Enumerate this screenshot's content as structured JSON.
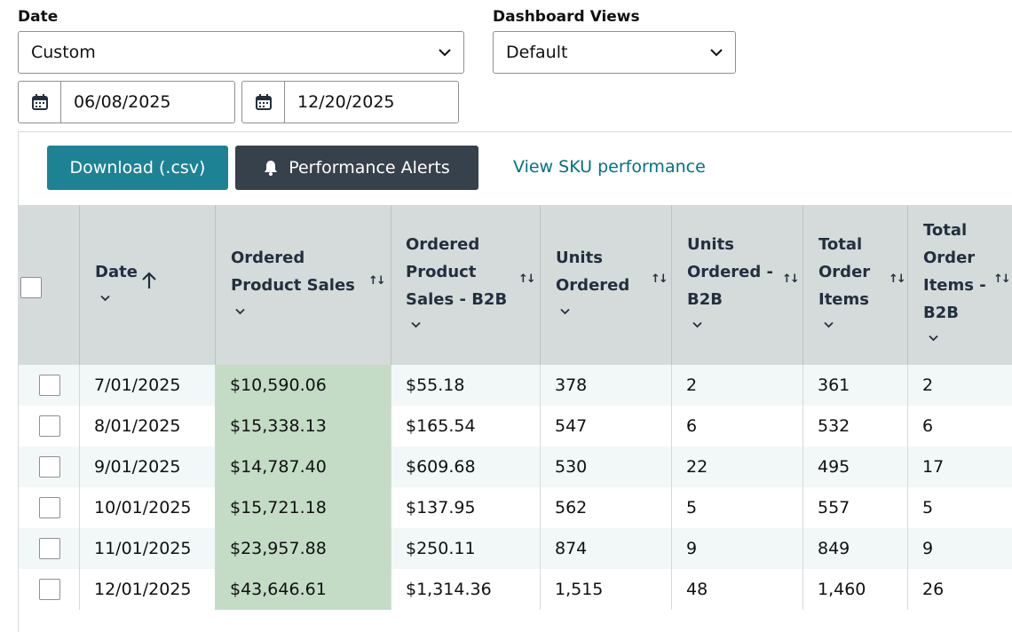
{
  "filters": {
    "date_label": "Date",
    "date_value": "Custom",
    "views_label": "Dashboard Views",
    "views_value": "Default",
    "start_date": "06/08/2025",
    "end_date": "12/20/2025"
  },
  "toolbar": {
    "download_label": "Download (.csv)",
    "alerts_label": "Performance Alerts",
    "sku_link": "View SKU performance"
  },
  "table": {
    "headers": {
      "date": "Date",
      "ordered_sales": [
        "Ordered",
        "Product Sales"
      ],
      "ordered_sales_b2b": [
        "Ordered",
        "Product",
        "Sales - B2B"
      ],
      "units": [
        "Units",
        "Ordered"
      ],
      "units_b2b": [
        "Units",
        "Ordered -",
        "B2B"
      ],
      "order_items": [
        "Total",
        "Order",
        "Items"
      ],
      "order_items_b2b": [
        "Total",
        "Order",
        "Items -",
        "B2B"
      ]
    },
    "rows": [
      [
        "7/01/2025",
        "$10,590.06",
        "$55.18",
        "378",
        "2",
        "361",
        "2"
      ],
      [
        "8/01/2025",
        "$15,338.13",
        "$165.54",
        "547",
        "6",
        "532",
        "6"
      ],
      [
        "9/01/2025",
        "$14,787.40",
        "$609.68",
        "530",
        "22",
        "495",
        "17"
      ],
      [
        "10/01/2025",
        "$15,721.18",
        "$137.95",
        "562",
        "5",
        "557",
        "5"
      ],
      [
        "11/01/2025",
        "$23,957.88",
        "$250.11",
        "874",
        "9",
        "849",
        "9"
      ],
      [
        "12/01/2025",
        "$43,646.61",
        "$1,314.36",
        "1,515",
        "48",
        "1,460",
        "26"
      ]
    ]
  },
  "colors": {
    "download_button": "#1e8295",
    "alerts_button": "#37414b",
    "link": "#007185",
    "header_bg": "#d5dbdb",
    "highlight_column": "#c4dcc6"
  }
}
